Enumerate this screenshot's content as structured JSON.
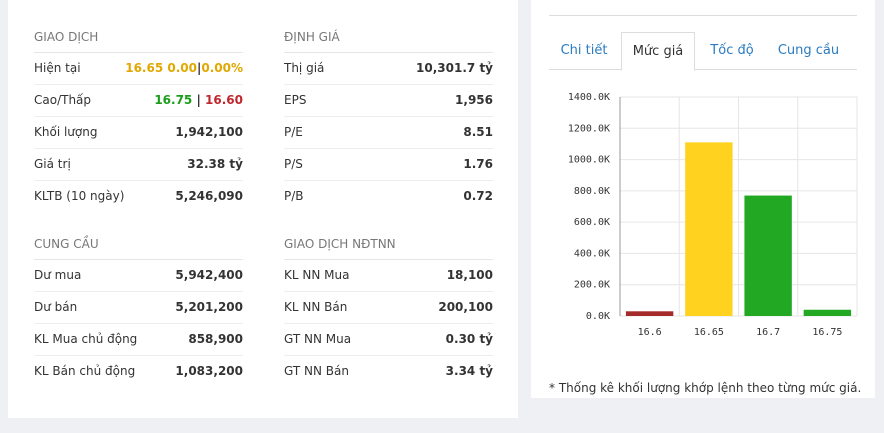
{
  "left_panel": {
    "sections": [
      {
        "title": "GIAO DỊCH",
        "rows": [
          {
            "label": "Hiện tại",
            "parts": [
              {
                "text": "16.65 0.00",
                "color": "#e0a800"
              },
              {
                "text": "|",
                "color": "#333"
              },
              {
                "text": "0.00%",
                "color": "#e0a800"
              }
            ]
          },
          {
            "label": "Cao/Thấp",
            "parts": [
              {
                "text": "16.75",
                "color": "#1a9e1a"
              },
              {
                "text": " | ",
                "color": "#333"
              },
              {
                "text": "16.60",
                "color": "#c0272d"
              }
            ]
          },
          {
            "label": "Khối lượng",
            "value": "1,942,100"
          },
          {
            "label": "Giá trị",
            "value": "32.38 tỷ"
          },
          {
            "label": "KLTB (10 ngày)",
            "value": "5,246,090"
          }
        ]
      },
      {
        "title": "ĐỊNH GIÁ",
        "rows": [
          {
            "label": "Thị giá",
            "value": "10,301.7 tỷ"
          },
          {
            "label": "EPS",
            "value": "1,956"
          },
          {
            "label": "P/E",
            "value": "8.51"
          },
          {
            "label": "P/S",
            "value": "1.76"
          },
          {
            "label": "P/B",
            "value": "0.72"
          }
        ]
      },
      {
        "title": "CUNG CẦU",
        "rows": [
          {
            "label": "Dư mua",
            "value": "5,942,400"
          },
          {
            "label": "Dư bán",
            "value": "5,201,200"
          },
          {
            "label": "KL Mua chủ động",
            "value": "858,900"
          },
          {
            "label": "KL Bán chủ động",
            "value": "1,083,200"
          }
        ]
      },
      {
        "title": "GIAO DỊCH NĐTNN",
        "rows": [
          {
            "label": "KL NN Mua",
            "value": "18,100"
          },
          {
            "label": "KL NN Bán",
            "value": "200,100"
          },
          {
            "label": "GT NN Mua",
            "value": "0.30 tỷ"
          },
          {
            "label": "GT NN Bán",
            "value": "3.34 tỷ"
          }
        ]
      }
    ]
  },
  "tabs": {
    "items": [
      "Chi tiết",
      "Mức giá",
      "Tốc độ",
      "Cung cầu"
    ],
    "active": 1
  },
  "chart_data": {
    "type": "bar",
    "categories": [
      "16.6",
      "16.65",
      "16.7",
      "16.75"
    ],
    "values": [
      30,
      1110,
      770,
      40
    ],
    "colors": [
      "#a52a2a",
      "#ffd21f",
      "#22a822",
      "#22a822"
    ],
    "ylim": [
      0,
      1400
    ],
    "yticks": [
      {
        "value": 0,
        "label": "0.0K"
      },
      {
        "value": 200,
        "label": "200.0K"
      },
      {
        "value": 400,
        "label": "400.0K"
      },
      {
        "value": 600,
        "label": "600.0K"
      },
      {
        "value": 800,
        "label": "800.0K"
      },
      {
        "value": 1000,
        "label": "1000.0K"
      },
      {
        "value": 1200,
        "label": "1200.0K"
      },
      {
        "value": 1400,
        "label": "1400.0K"
      }
    ],
    "grid": true
  },
  "footnote": "* Thống kê khối lượng khớp lệnh theo từng mức giá."
}
